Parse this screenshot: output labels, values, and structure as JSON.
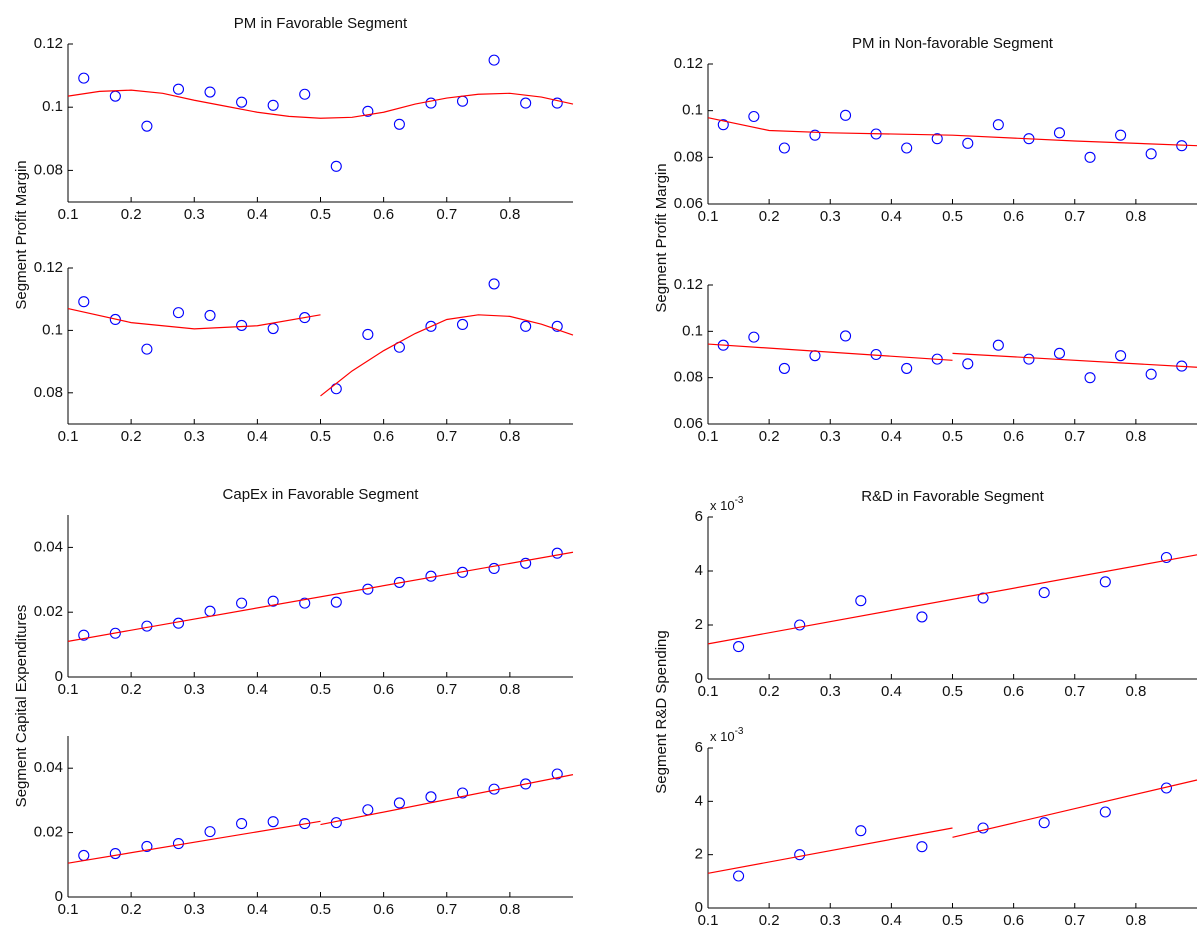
{
  "chart_data": [
    {
      "type": "scatter",
      "title": "PM in Favorable Segment",
      "ylabel": "Segment Profit Margin",
      "xlim": [
        0.1,
        0.9
      ],
      "xticks": [
        0.1,
        0.2,
        0.3,
        0.4,
        0.5,
        0.6,
        0.7,
        0.8
      ],
      "ylim": [
        0.07,
        0.12
      ],
      "yticks": [
        0.08,
        0.1,
        0.12
      ],
      "series": [
        {
          "type": "scatter",
          "color": "#0000ff",
          "x": [
            0.125,
            0.175,
            0.225,
            0.275,
            0.325,
            0.375,
            0.425,
            0.475,
            0.525,
            0.575,
            0.625,
            0.675,
            0.725,
            0.775,
            0.825,
            0.875
          ],
          "values": [
            0.1092,
            0.1035,
            0.094,
            0.1057,
            0.1048,
            0.1016,
            0.1006,
            0.1041,
            0.0813,
            0.0987,
            0.0946,
            0.1013,
            0.1019,
            0.1149,
            0.1013,
            0.1013
          ]
        },
        {
          "type": "line",
          "color": "#ff0000",
          "x": [
            0.1,
            0.15,
            0.2,
            0.25,
            0.3,
            0.35,
            0.4,
            0.45,
            0.5,
            0.55,
            0.6,
            0.65,
            0.7,
            0.75,
            0.8,
            0.85,
            0.9
          ],
          "values": [
            0.1035,
            0.105,
            0.1054,
            0.1044,
            0.1022,
            0.1003,
            0.0984,
            0.0971,
            0.0965,
            0.0968,
            0.0984,
            0.101,
            0.1029,
            0.1041,
            0.1044,
            0.1032,
            0.101
          ]
        }
      ]
    },
    {
      "type": "scatter",
      "xlim": [
        0.1,
        0.9
      ],
      "xticks": [
        0.1,
        0.2,
        0.3,
        0.4,
        0.5,
        0.6,
        0.7,
        0.8
      ],
      "ylim": [
        0.07,
        0.12
      ],
      "yticks": [
        0.08,
        0.1,
        0.12
      ],
      "series": [
        {
          "type": "scatter",
          "color": "#0000ff",
          "x": [
            0.125,
            0.175,
            0.225,
            0.275,
            0.325,
            0.375,
            0.425,
            0.475,
            0.525,
            0.575,
            0.625,
            0.675,
            0.725,
            0.775,
            0.825,
            0.875
          ],
          "values": [
            0.1092,
            0.1035,
            0.094,
            0.1057,
            0.1048,
            0.1016,
            0.1006,
            0.1041,
            0.0813,
            0.0987,
            0.0946,
            0.1013,
            0.1019,
            0.1149,
            0.1013,
            0.1013
          ]
        },
        {
          "type": "line",
          "color": "#ff0000",
          "x": [
            0.1,
            0.2,
            0.3,
            0.4,
            0.5
          ],
          "values": [
            0.107,
            0.1025,
            0.1005,
            0.1015,
            0.105
          ]
        },
        {
          "type": "line",
          "color": "#ff0000",
          "x": [
            0.5,
            0.55,
            0.6,
            0.65,
            0.7,
            0.75,
            0.8,
            0.85,
            0.9
          ],
          "values": [
            0.079,
            0.087,
            0.0935,
            0.099,
            0.1035,
            0.105,
            0.1045,
            0.102,
            0.0985
          ]
        }
      ]
    },
    {
      "type": "scatter",
      "title": "CapEx in Favorable Segment",
      "ylabel": "Segment Capital Expenditures",
      "xlim": [
        0.1,
        0.9
      ],
      "xticks": [
        0.1,
        0.2,
        0.3,
        0.4,
        0.5,
        0.6,
        0.7,
        0.8
      ],
      "ylim": [
        0,
        0.05
      ],
      "yticks": [
        0,
        0.02,
        0.04
      ],
      "series": [
        {
          "type": "scatter",
          "color": "#0000ff",
          "x": [
            0.125,
            0.175,
            0.225,
            0.275,
            0.325,
            0.375,
            0.425,
            0.475,
            0.525,
            0.575,
            0.625,
            0.675,
            0.725,
            0.775,
            0.825,
            0.875
          ],
          "values": [
            0.0129,
            0.0135,
            0.0157,
            0.0166,
            0.0203,
            0.0228,
            0.0234,
            0.0228,
            0.0231,
            0.0271,
            0.0292,
            0.0311,
            0.0323,
            0.0335,
            0.0351,
            0.0382
          ]
        },
        {
          "type": "line",
          "color": "#ff0000",
          "x": [
            0.1,
            0.9
          ],
          "values": [
            0.011,
            0.0385
          ]
        }
      ]
    },
    {
      "type": "scatter",
      "xlim": [
        0.1,
        0.9
      ],
      "xticks": [
        0.1,
        0.2,
        0.3,
        0.4,
        0.5,
        0.6,
        0.7,
        0.8
      ],
      "ylim": [
        0,
        0.05
      ],
      "yticks": [
        0,
        0.02,
        0.04
      ],
      "series": [
        {
          "type": "scatter",
          "color": "#0000ff",
          "x": [
            0.125,
            0.175,
            0.225,
            0.275,
            0.325,
            0.375,
            0.425,
            0.475,
            0.525,
            0.575,
            0.625,
            0.675,
            0.725,
            0.775,
            0.825,
            0.875
          ],
          "values": [
            0.0129,
            0.0135,
            0.0157,
            0.0166,
            0.0203,
            0.0228,
            0.0234,
            0.0228,
            0.0231,
            0.0271,
            0.0292,
            0.0311,
            0.0323,
            0.0335,
            0.0351,
            0.0382
          ]
        },
        {
          "type": "line",
          "color": "#ff0000",
          "x": [
            0.1,
            0.5
          ],
          "values": [
            0.0105,
            0.0235
          ]
        },
        {
          "type": "line",
          "color": "#ff0000",
          "x": [
            0.5,
            0.9
          ],
          "values": [
            0.0225,
            0.038
          ]
        }
      ]
    },
    {
      "type": "scatter",
      "title": "PM in Non-favorable Segment",
      "ylabel": "Segment Profit Margin",
      "xlim": [
        0.1,
        0.9
      ],
      "xticks": [
        0.1,
        0.2,
        0.3,
        0.4,
        0.5,
        0.6,
        0.7,
        0.8
      ],
      "ylim": [
        0.06,
        0.12
      ],
      "yticks": [
        0.06,
        0.08,
        0.1,
        0.12
      ],
      "series": [
        {
          "type": "scatter",
          "color": "#0000ff",
          "x": [
            0.125,
            0.175,
            0.225,
            0.275,
            0.325,
            0.375,
            0.425,
            0.475,
            0.525,
            0.575,
            0.625,
            0.675,
            0.725,
            0.775,
            0.825,
            0.875
          ],
          "values": [
            0.094,
            0.0975,
            0.084,
            0.0895,
            0.098,
            0.09,
            0.084,
            0.088,
            0.086,
            0.094,
            0.088,
            0.0905,
            0.08,
            0.0895,
            0.0815,
            0.085
          ]
        },
        {
          "type": "line",
          "color": "#ff0000",
          "x": [
            0.1,
            0.2,
            0.3,
            0.5,
            0.7,
            0.9
          ],
          "values": [
            0.097,
            0.0915,
            0.0905,
            0.0895,
            0.087,
            0.085
          ]
        }
      ]
    },
    {
      "type": "scatter",
      "xlim": [
        0.1,
        0.9
      ],
      "xticks": [
        0.1,
        0.2,
        0.3,
        0.4,
        0.5,
        0.6,
        0.7,
        0.8
      ],
      "ylim": [
        0.06,
        0.12
      ],
      "yticks": [
        0.06,
        0.08,
        0.1,
        0.12
      ],
      "series": [
        {
          "type": "scatter",
          "color": "#0000ff",
          "x": [
            0.125,
            0.175,
            0.225,
            0.275,
            0.325,
            0.375,
            0.425,
            0.475,
            0.525,
            0.575,
            0.625,
            0.675,
            0.725,
            0.775,
            0.825,
            0.875
          ],
          "values": [
            0.094,
            0.0975,
            0.084,
            0.0895,
            0.098,
            0.09,
            0.084,
            0.088,
            0.086,
            0.094,
            0.088,
            0.0905,
            0.08,
            0.0895,
            0.0815,
            0.085
          ]
        },
        {
          "type": "line",
          "color": "#ff0000",
          "x": [
            0.1,
            0.5
          ],
          "values": [
            0.0945,
            0.0875
          ]
        },
        {
          "type": "line",
          "color": "#ff0000",
          "x": [
            0.5,
            0.9
          ],
          "values": [
            0.0905,
            0.0845
          ]
        }
      ]
    },
    {
      "type": "scatter",
      "title": "R&D in Favorable Segment",
      "ylabel": "Segment R&D Spending",
      "y_exponent": {
        "base": "x 10",
        "power": "-3"
      },
      "xlim": [
        0.1,
        0.9
      ],
      "xticks": [
        0.1,
        0.2,
        0.3,
        0.4,
        0.5,
        0.6,
        0.7,
        0.8
      ],
      "ylim": [
        0,
        6
      ],
      "yticks": [
        0,
        2,
        4,
        6
      ],
      "series": [
        {
          "type": "scatter",
          "color": "#0000ff",
          "x": [
            0.15,
            0.25,
            0.35,
            0.45,
            0.55,
            0.65,
            0.75,
            0.85
          ],
          "values": [
            1.2,
            2.0,
            2.9,
            2.3,
            3.0,
            3.2,
            3.6,
            4.5
          ]
        },
        {
          "type": "line",
          "color": "#ff0000",
          "x": [
            0.1,
            0.9
          ],
          "values": [
            1.3,
            4.6
          ]
        }
      ]
    },
    {
      "type": "scatter",
      "y_exponent": {
        "base": "x 10",
        "power": "-3"
      },
      "xlim": [
        0.1,
        0.9
      ],
      "xticks": [
        0.1,
        0.2,
        0.3,
        0.4,
        0.5,
        0.6,
        0.7,
        0.8
      ],
      "ylim": [
        0,
        6
      ],
      "yticks": [
        0,
        2,
        4,
        6
      ],
      "series": [
        {
          "type": "scatter",
          "color": "#0000ff",
          "x": [
            0.15,
            0.25,
            0.35,
            0.45,
            0.55,
            0.65,
            0.75,
            0.85
          ],
          "values": [
            1.2,
            2.0,
            2.9,
            2.3,
            3.0,
            3.2,
            3.6,
            4.5
          ]
        },
        {
          "type": "line",
          "color": "#ff0000",
          "x": [
            0.1,
            0.5
          ],
          "values": [
            1.3,
            3.0
          ]
        },
        {
          "type": "line",
          "color": "#ff0000",
          "x": [
            0.5,
            0.9
          ],
          "values": [
            2.65,
            4.8
          ]
        }
      ]
    }
  ]
}
